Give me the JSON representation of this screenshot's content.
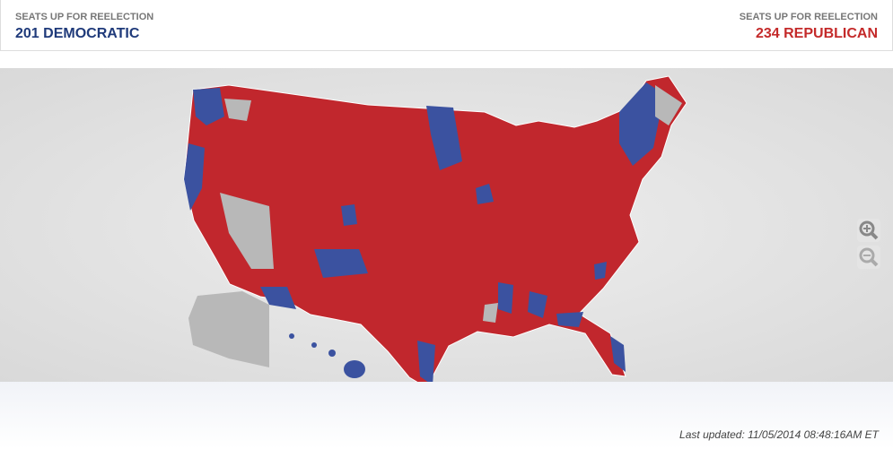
{
  "header": {
    "left": {
      "label": "SEATS UP FOR REELECTION",
      "count": "201 DEMOCRATIC"
    },
    "right": {
      "label": "SEATS UP FOR REELECTION",
      "count": "234 REPUBLICAN"
    }
  },
  "footer": {
    "updated": "Last updated: 11/05/2014 08:48:16AM ET"
  }
}
